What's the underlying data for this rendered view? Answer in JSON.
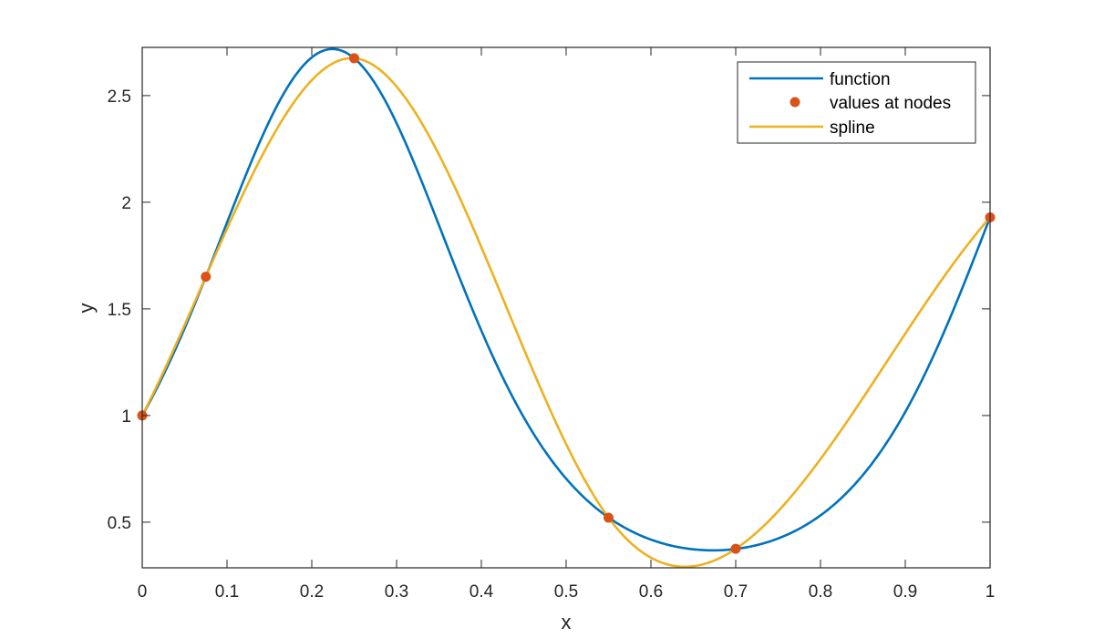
{
  "chart_data": {
    "type": "line",
    "title": "",
    "xlabel": "x",
    "ylabel": "y",
    "xlim": [
      0,
      1
    ],
    "ylim": [
      0.286,
      2.726
    ],
    "grid": false,
    "box": true,
    "legend_position": "northeast",
    "x_ticks": [
      0,
      0.1,
      0.2,
      0.3,
      0.4,
      0.5,
      0.6,
      0.7,
      0.8,
      0.9,
      1
    ],
    "x_tick_labels": [
      "0",
      "0.1",
      "0.2",
      "0.3",
      "0.4",
      "0.5",
      "0.6",
      "0.7",
      "0.8",
      "0.9",
      "1"
    ],
    "y_ticks": [
      0.5,
      1,
      1.5,
      2,
      2.5
    ],
    "y_tick_labels": [
      "0.5",
      "1",
      "1.5",
      "2",
      "2.5"
    ],
    "series": [
      {
        "name": "function",
        "kind": "line",
        "color": "#0072BD",
        "expression": "exp(sin(7x))",
        "x": [
          0,
          0.05,
          0.1,
          0.15,
          0.2,
          0.225,
          0.25,
          0.3,
          0.35,
          0.4,
          0.45,
          0.5,
          0.55,
          0.6,
          0.65,
          0.673,
          0.7,
          0.75,
          0.8,
          0.85,
          0.9,
          0.95,
          1
        ],
        "values": [
          1.0,
          1.41,
          1.9,
          2.39,
          2.69,
          2.718,
          2.67,
          2.37,
          1.86,
          1.4,
          1.03,
          0.77,
          0.52,
          0.41,
          0.37,
          0.368,
          0.375,
          0.43,
          0.55,
          0.74,
          1.05,
          1.45,
          1.93
        ]
      },
      {
        "name": "values at nodes",
        "kind": "markers",
        "color": "#D95319",
        "x": [
          0,
          0.075,
          0.25,
          0.55,
          0.7,
          1
        ],
        "values": [
          1.0,
          1.651,
          2.675,
          0.521,
          0.375,
          1.929
        ]
      },
      {
        "name": "spline",
        "kind": "line",
        "color": "#EDB120",
        "method": "cubic spline (not-a-knot) through nodes",
        "x": [
          0,
          0.075,
          0.25,
          0.55,
          0.7,
          1
        ],
        "values": [
          1.0,
          1.651,
          2.675,
          0.521,
          0.375,
          1.929
        ]
      }
    ]
  },
  "legend": {
    "items": [
      {
        "label": "function",
        "color": "#0072BD",
        "kind": "line"
      },
      {
        "label": "values at nodes",
        "color": "#D95319",
        "kind": "marker"
      },
      {
        "label": "spline",
        "color": "#EDB120",
        "kind": "line"
      }
    ]
  },
  "axes": {
    "xlabel": "x",
    "ylabel": "y"
  }
}
